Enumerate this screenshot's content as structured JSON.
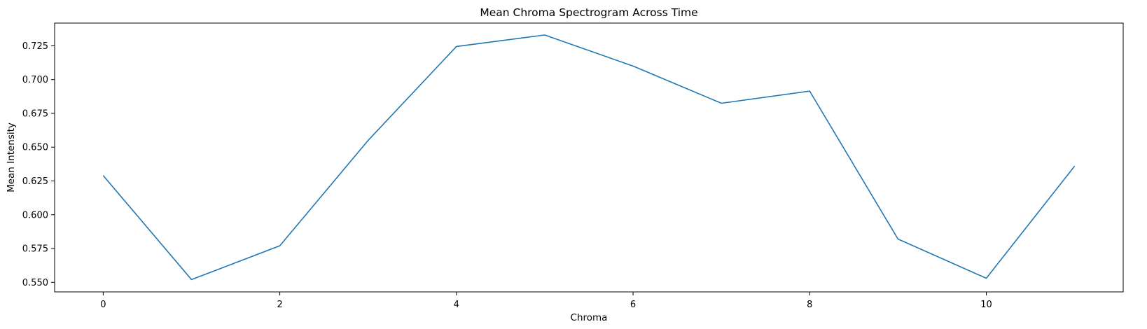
{
  "chart_data": {
    "type": "line",
    "title": "Mean Chroma Spectrogram Across Time",
    "xlabel": "Chroma",
    "ylabel": "Mean Intensity",
    "x": [
      0,
      1,
      2,
      3,
      4,
      5,
      6,
      7,
      8,
      9,
      10,
      11
    ],
    "series": [
      {
        "values": [
          0.629,
          0.552,
          0.577,
          0.655,
          0.7245,
          0.733,
          0.71,
          0.6825,
          0.6915,
          0.582,
          0.553,
          0.636
        ],
        "color": "#1f77b4"
      }
    ],
    "xlim": [
      -0.55,
      11.55
    ],
    "ylim": [
      0.5429,
      0.7418
    ],
    "x_ticks": [
      0,
      2,
      4,
      6,
      8,
      10
    ],
    "y_ticks": [
      0.55,
      0.575,
      0.6,
      0.625,
      0.65,
      0.675,
      0.7,
      0.725
    ],
    "y_tick_labels": [
      "0.550",
      "0.575",
      "0.600",
      "0.625",
      "0.650",
      "0.675",
      "0.700",
      "0.725"
    ],
    "grid": false,
    "legend": "none"
  }
}
